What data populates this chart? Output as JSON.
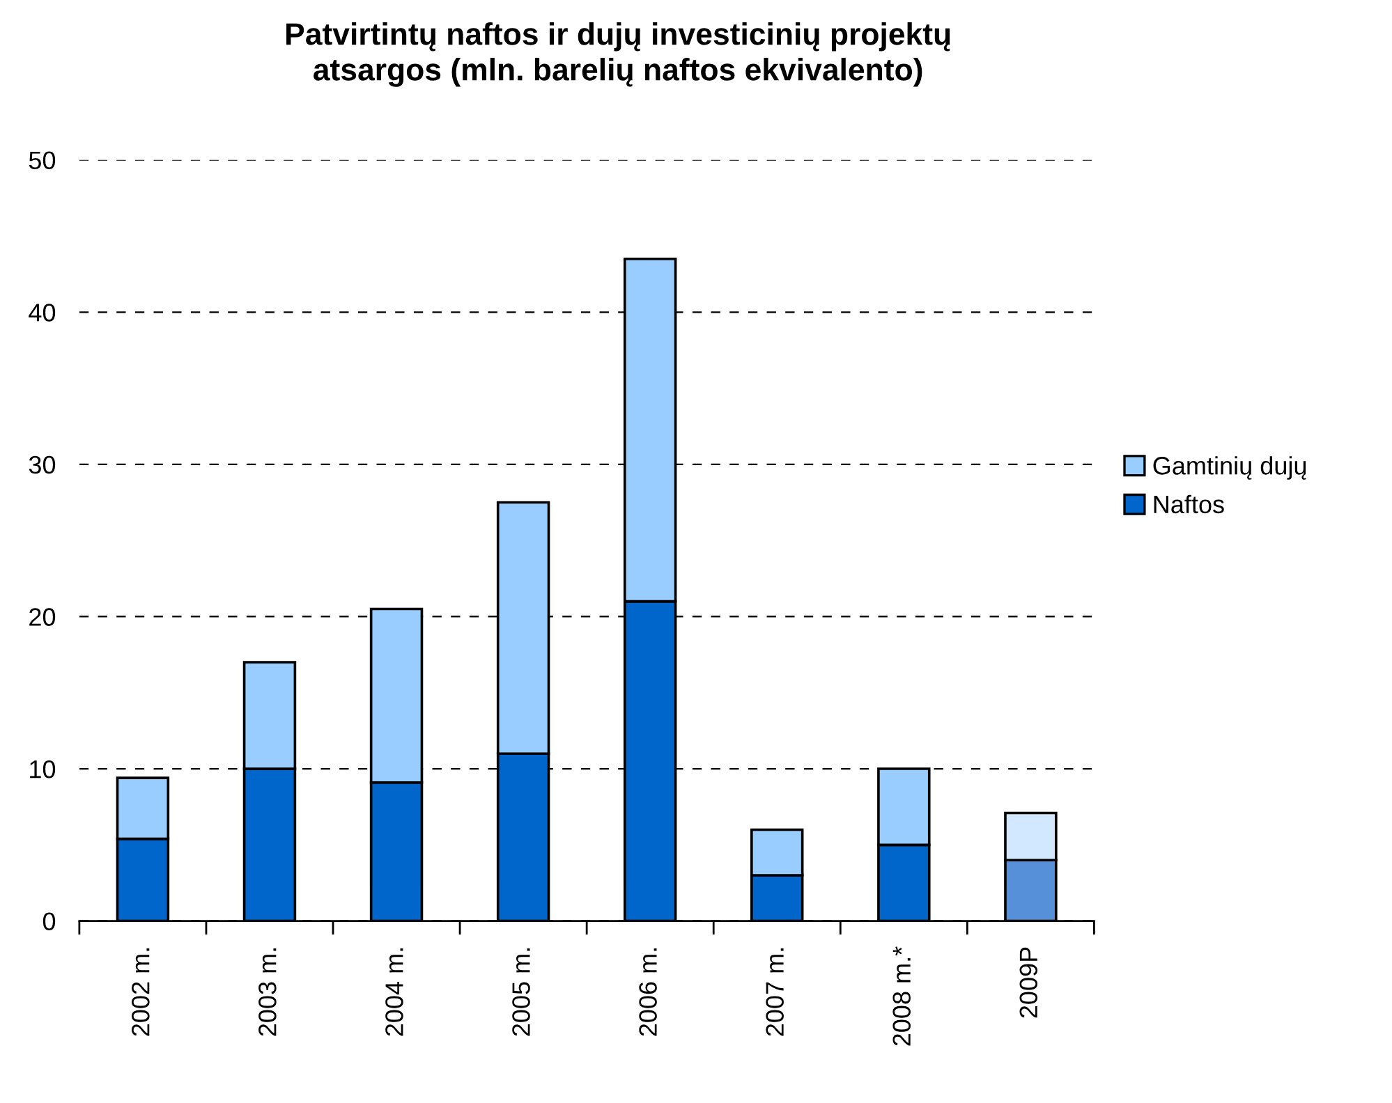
{
  "chart_data": {
    "type": "bar",
    "title": "Patvirtintų naftos ir dujų investicinių projektų\natsargos (mln. barelių naftos ekvivalento)",
    "categories": [
      "2002 m.",
      "2003 m.",
      "2004 m.",
      "2005 m.",
      "2006 m.",
      "2007 m.",
      "2008 m.*",
      "2009P"
    ],
    "series": [
      {
        "name": "Naftos",
        "color": "#0066cc",
        "colors": [
          "#0066cc",
          "#0066cc",
          "#0066cc",
          "#0066cc",
          "#0066cc",
          "#0066cc",
          "#0066cc",
          "#5590d8"
        ],
        "values": [
          5.4,
          10,
          9.1,
          11,
          21,
          3,
          5,
          4
        ]
      },
      {
        "name": "Gamtinių dujų",
        "color": "#99ccff",
        "colors": [
          "#99ccff",
          "#99ccff",
          "#99ccff",
          "#99ccff",
          "#99ccff",
          "#99ccff",
          "#99ccff",
          "#d2e8ff"
        ],
        "values": [
          4,
          7,
          11.4,
          16.5,
          22.5,
          3,
          5,
          3.1
        ]
      }
    ],
    "stacked": true,
    "ylim": [
      0,
      50
    ],
    "yticks": [
      0,
      10,
      20,
      30,
      40,
      50
    ],
    "grid": "y",
    "legend": "right"
  }
}
